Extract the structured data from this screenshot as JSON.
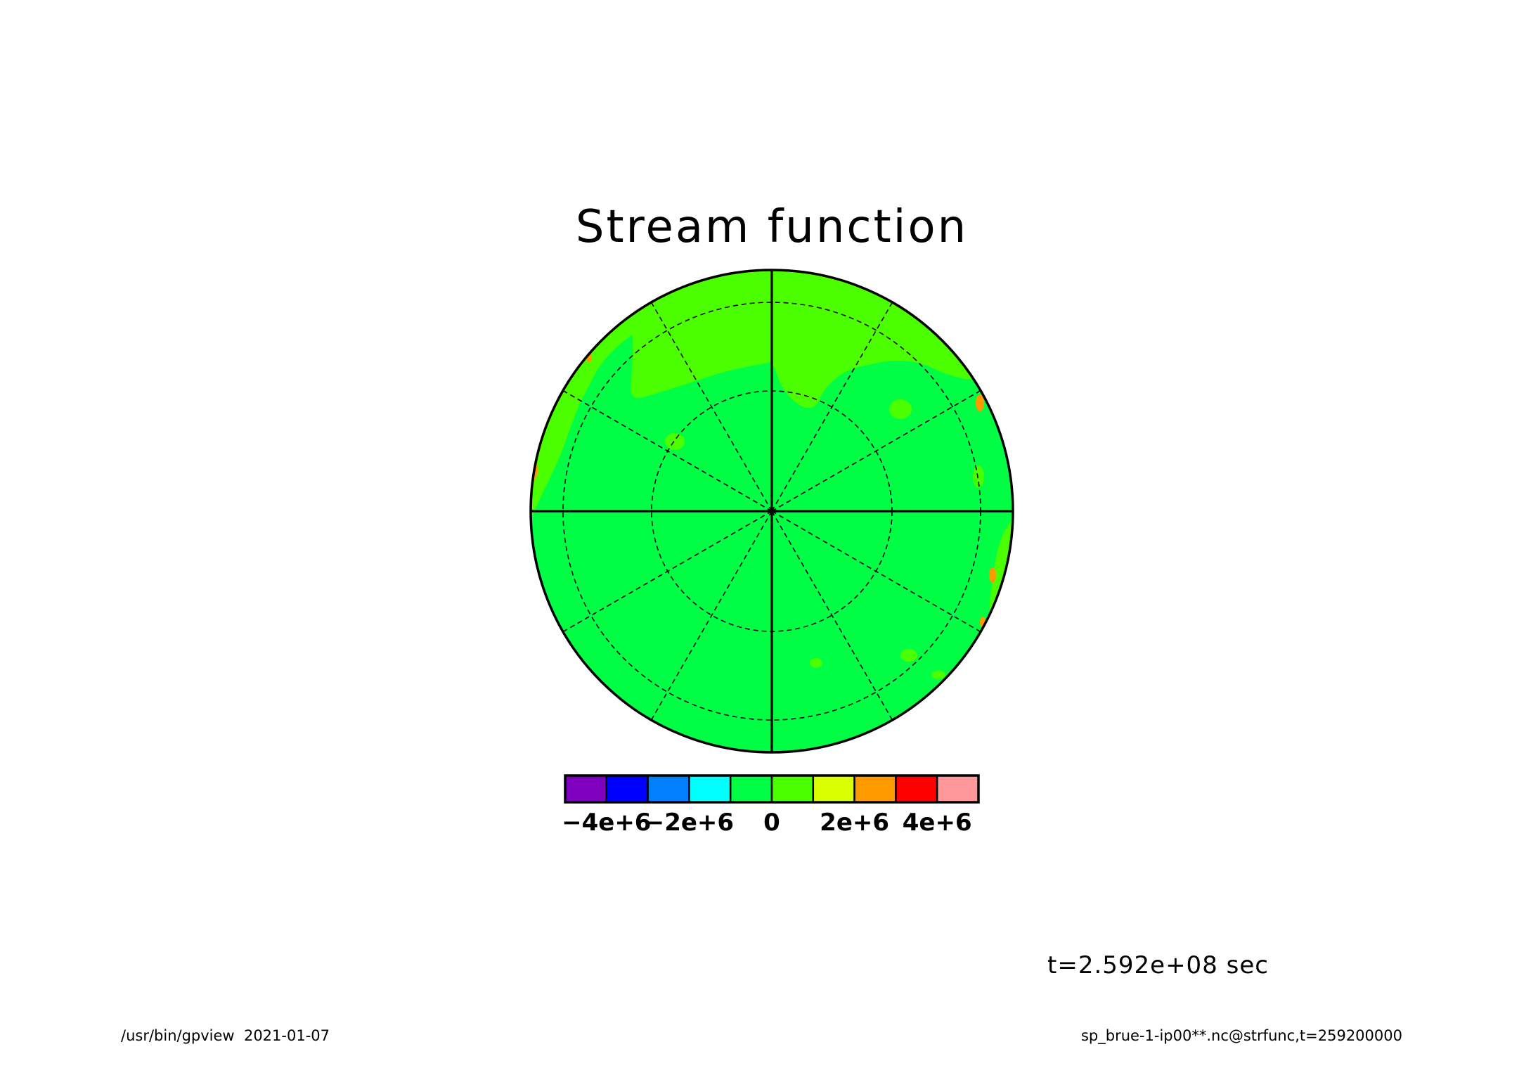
{
  "chart_data": {
    "type": "heatmap",
    "title": "Stream function",
    "projection": "polar stereographic (orthographic disk view)",
    "colorbar": {
      "colors": [
        "#7f00bf",
        "#0000ff",
        "#0080ff",
        "#00ffff",
        "#00ff44",
        "#4cff00",
        "#d9ff00",
        "#ff9900",
        "#ff0000",
        "#ff9999"
      ],
      "tick_labels": [
        "−4e+6",
        "−2e+6",
        "0",
        "2e+6",
        "4e+6"
      ],
      "tick_values": [
        -4000000,
        -2000000,
        0,
        2000000,
        4000000
      ],
      "levels": [
        -5000000,
        -4000000,
        -3000000,
        -2000000,
        -1000000,
        0,
        1000000,
        2000000,
        3000000,
        4000000,
        5000000
      ]
    },
    "field_description": {
      "dominant_level_color": "#00ff44",
      "secondary_level_color": "#4cff00",
      "minor_colors_present": [
        "#d9ff00",
        "#ff9900",
        "#ff0000",
        "#00ffff"
      ]
    },
    "grid": {
      "latitude_circles": 2,
      "meridian_spacing_deg": 30,
      "solid_axes": true
    },
    "time_label": "t=2.592e+08 sec"
  },
  "footer": {
    "left": "/usr/bin/gpview  2021-01-07",
    "right": "sp_brue-1-ip00**.nc@strfunc,t=259200000"
  },
  "colors": {
    "background": "#ffffff",
    "line": "#000000"
  }
}
